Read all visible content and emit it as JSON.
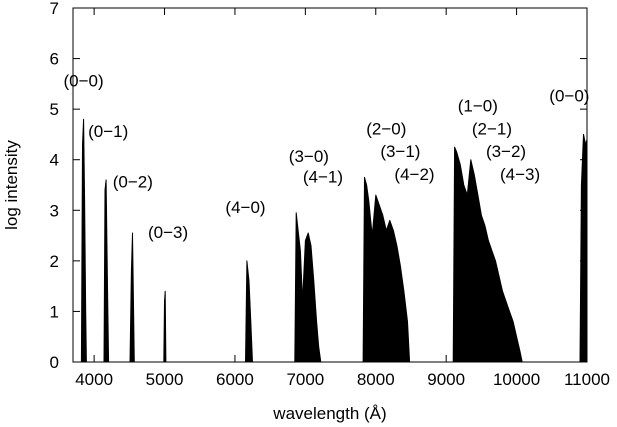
{
  "chart_data": {
    "type": "line",
    "xlabel": "wavelength (Å)",
    "ylabel": "log intensity",
    "xlim": [
      3700,
      11000
    ],
    "ylim": [
      0,
      7
    ],
    "x_ticks": [
      "4000",
      "5000",
      "6000",
      "7000",
      "8000",
      "9000",
      "10000",
      "11000"
    ],
    "y_ticks": [
      "0",
      "1",
      "2",
      "3",
      "4",
      "5",
      "6",
      "7"
    ],
    "grid": false,
    "series": [
      {
        "x": [
          3700,
          3820,
          3835,
          3850,
          3865,
          3880,
          3890,
          4140,
          4155,
          4170,
          4190,
          4205,
          4510,
          4530,
          4545,
          4560,
          4570,
          4990,
          5000,
          5010,
          5020,
          6150,
          6170,
          6200,
          6225,
          6250,
          6850,
          6870,
          6890,
          6930,
          6960,
          7000,
          7040,
          7080,
          7120,
          7160,
          7190,
          7220,
          7820,
          7840,
          7870,
          7900,
          7950,
          8000,
          8050,
          8100,
          8150,
          8200,
          8250,
          8300,
          8350,
          8400,
          8450,
          8480,
          9100,
          9120,
          9150,
          9200,
          9250,
          9300,
          9350,
          9400,
          9450,
          9500,
          9550,
          9600,
          9650,
          9700,
          9750,
          9800,
          9850,
          9900,
          9950,
          10000,
          10050,
          10080,
          10900,
          10920,
          10950,
          10980,
          11000
        ],
        "y": [
          0,
          0,
          4.3,
          4.8,
          3.2,
          1.0,
          0,
          0,
          3.4,
          3.6,
          1.5,
          0,
          0,
          1.8,
          2.55,
          1.0,
          0,
          0,
          1.2,
          1.4,
          0,
          0,
          2.0,
          1.6,
          0.8,
          0,
          0,
          2.95,
          2.7,
          2.2,
          1.2,
          2.4,
          2.55,
          2.3,
          1.6,
          0.8,
          0.3,
          0,
          0,
          3.65,
          3.5,
          3.2,
          2.5,
          3.3,
          3.1,
          2.9,
          2.6,
          2.8,
          2.6,
          2.3,
          1.9,
          1.4,
          0.8,
          0,
          0,
          4.25,
          4.15,
          3.9,
          3.5,
          3.3,
          4.0,
          3.7,
          3.3,
          2.9,
          2.7,
          2.4,
          2.2,
          2.0,
          1.7,
          1.4,
          1.2,
          1.0,
          0.8,
          0.5,
          0.2,
          0,
          0,
          3.5,
          4.5,
          4.3,
          4.4
        ]
      }
    ],
    "annotations": [
      {
        "text": "(0−0)",
        "x": 3850,
        "y": 5.45
      },
      {
        "text": "(0−1)",
        "x": 4200,
        "y": 4.45
      },
      {
        "text": "(0−2)",
        "x": 4550,
        "y": 3.45
      },
      {
        "text": "(0−3)",
        "x": 5050,
        "y": 2.45
      },
      {
        "text": "(4−0)",
        "x": 6150,
        "y": 2.95
      },
      {
        "text": "(3−0)",
        "x": 7050,
        "y": 3.95
      },
      {
        "text": "(4−1)",
        "x": 7250,
        "y": 3.55
      },
      {
        "text": "(2−0)",
        "x": 8150,
        "y": 4.5
      },
      {
        "text": "(3−1)",
        "x": 8350,
        "y": 4.05
      },
      {
        "text": "(4−2)",
        "x": 8550,
        "y": 3.6
      },
      {
        "text": "(1−0)",
        "x": 9450,
        "y": 4.95
      },
      {
        "text": "(2−1)",
        "x": 9650,
        "y": 4.5
      },
      {
        "text": "(3−2)",
        "x": 9850,
        "y": 4.05
      },
      {
        "text": "(4−3)",
        "x": 10050,
        "y": 3.6
      },
      {
        "text": "(0−0)",
        "x": 10750,
        "y": 5.15
      }
    ]
  }
}
